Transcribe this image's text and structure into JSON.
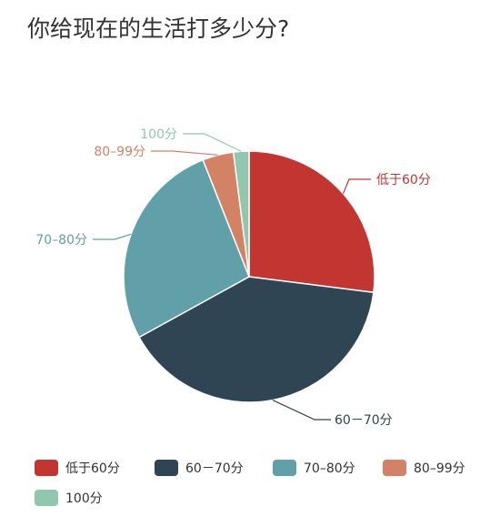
{
  "chart_data": {
    "type": "pie",
    "title": "你给现在的生活打多少分?",
    "slices": [
      {
        "label": "低于60分",
        "value": 27,
        "color": "#c23531",
        "callout_label": "低于60分"
      },
      {
        "label": "60－70分",
        "value": 40,
        "color": "#2f4554",
        "callout_label": "60－70分"
      },
      {
        "label": "70–80分",
        "value": 27,
        "color": "#61a0a8",
        "callout_label": "70–80分"
      },
      {
        "label": "80–99分",
        "value": 4,
        "color": "#d48265",
        "callout_label": "80–99分"
      },
      {
        "label": "100分",
        "value": 2,
        "color": "#91c7ae",
        "callout_label": "100分"
      }
    ],
    "legend_position": "bottom-left"
  }
}
